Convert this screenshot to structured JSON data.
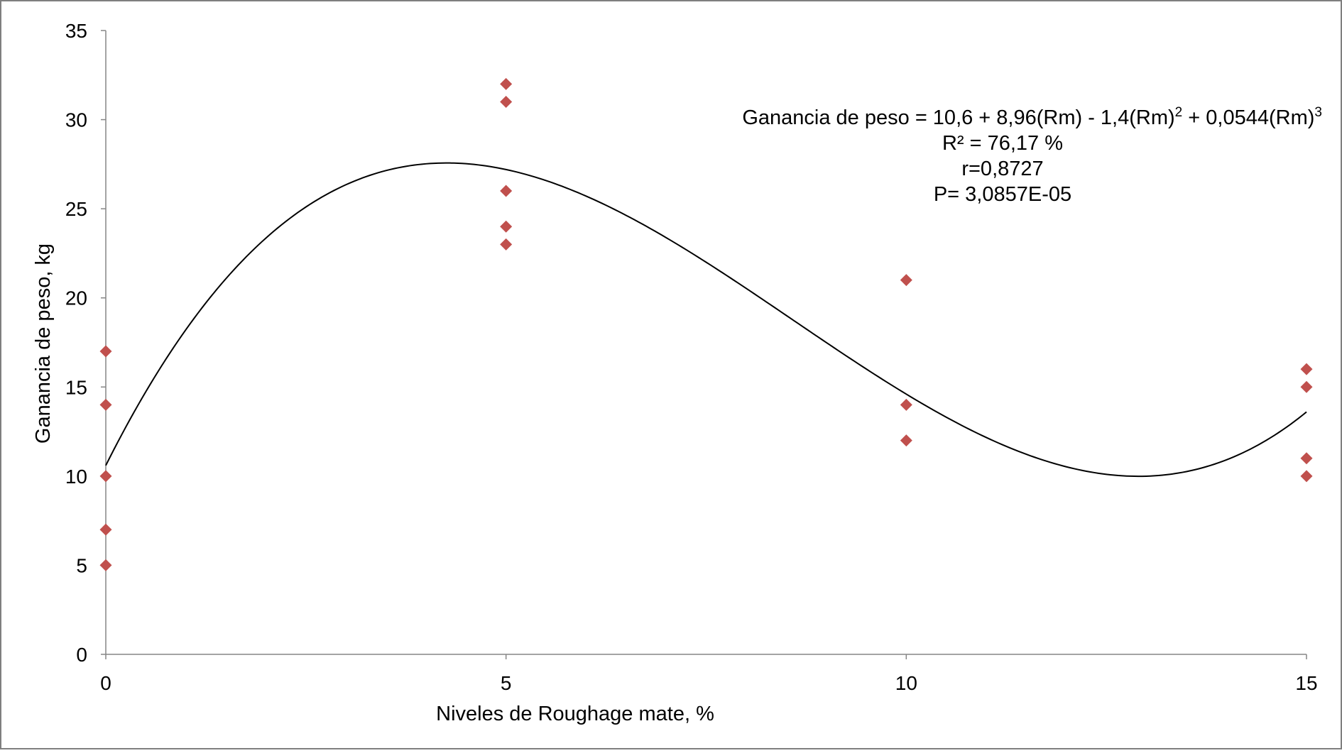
{
  "chart_data": {
    "type": "scatter",
    "xlabel": "Niveles de Roughage mate, %",
    "ylabel": "Ganancia de peso,  kg",
    "xlim": [
      0,
      15
    ],
    "ylim": [
      0,
      35
    ],
    "x_ticks": [
      "0",
      "5",
      "10",
      "15"
    ],
    "y_ticks": [
      "0",
      "5",
      "10",
      "15",
      "20",
      "25",
      "30",
      "35"
    ],
    "grid": false,
    "legend": "none",
    "points": [
      {
        "x": 0,
        "y": 17
      },
      {
        "x": 0,
        "y": 14
      },
      {
        "x": 0,
        "y": 10
      },
      {
        "x": 0,
        "y": 7
      },
      {
        "x": 0,
        "y": 5
      },
      {
        "x": 5,
        "y": 32
      },
      {
        "x": 5,
        "y": 31
      },
      {
        "x": 5,
        "y": 26
      },
      {
        "x": 5,
        "y": 24
      },
      {
        "x": 5,
        "y": 23
      },
      {
        "x": 10,
        "y": 21
      },
      {
        "x": 10,
        "y": 14
      },
      {
        "x": 10,
        "y": 12
      },
      {
        "x": 15,
        "y": 16
      },
      {
        "x": 15,
        "y": 15
      },
      {
        "x": 15,
        "y": 11
      },
      {
        "x": 15,
        "y": 10
      }
    ],
    "trendline": {
      "type": "polynomial",
      "degree": 3,
      "coefficients": [
        10.6,
        8.96,
        -1.4,
        0.0544
      ]
    },
    "annotation": {
      "equation_prefix": "Ganancia de peso = 10,6 + 8,96(Rm) - 1,4(Rm)",
      "equation_exp2": "2",
      "equation_middle": " + 0,0544(Rm)",
      "equation_exp3": "3",
      "r2": "R² = 76,17 %",
      "r": "r=0,8727",
      "p": "P= 3,0857E-05"
    },
    "colors": {
      "marker": "#c0504d",
      "curve": "#000000",
      "axis": "#868686",
      "border": "#7f7f7f"
    }
  }
}
